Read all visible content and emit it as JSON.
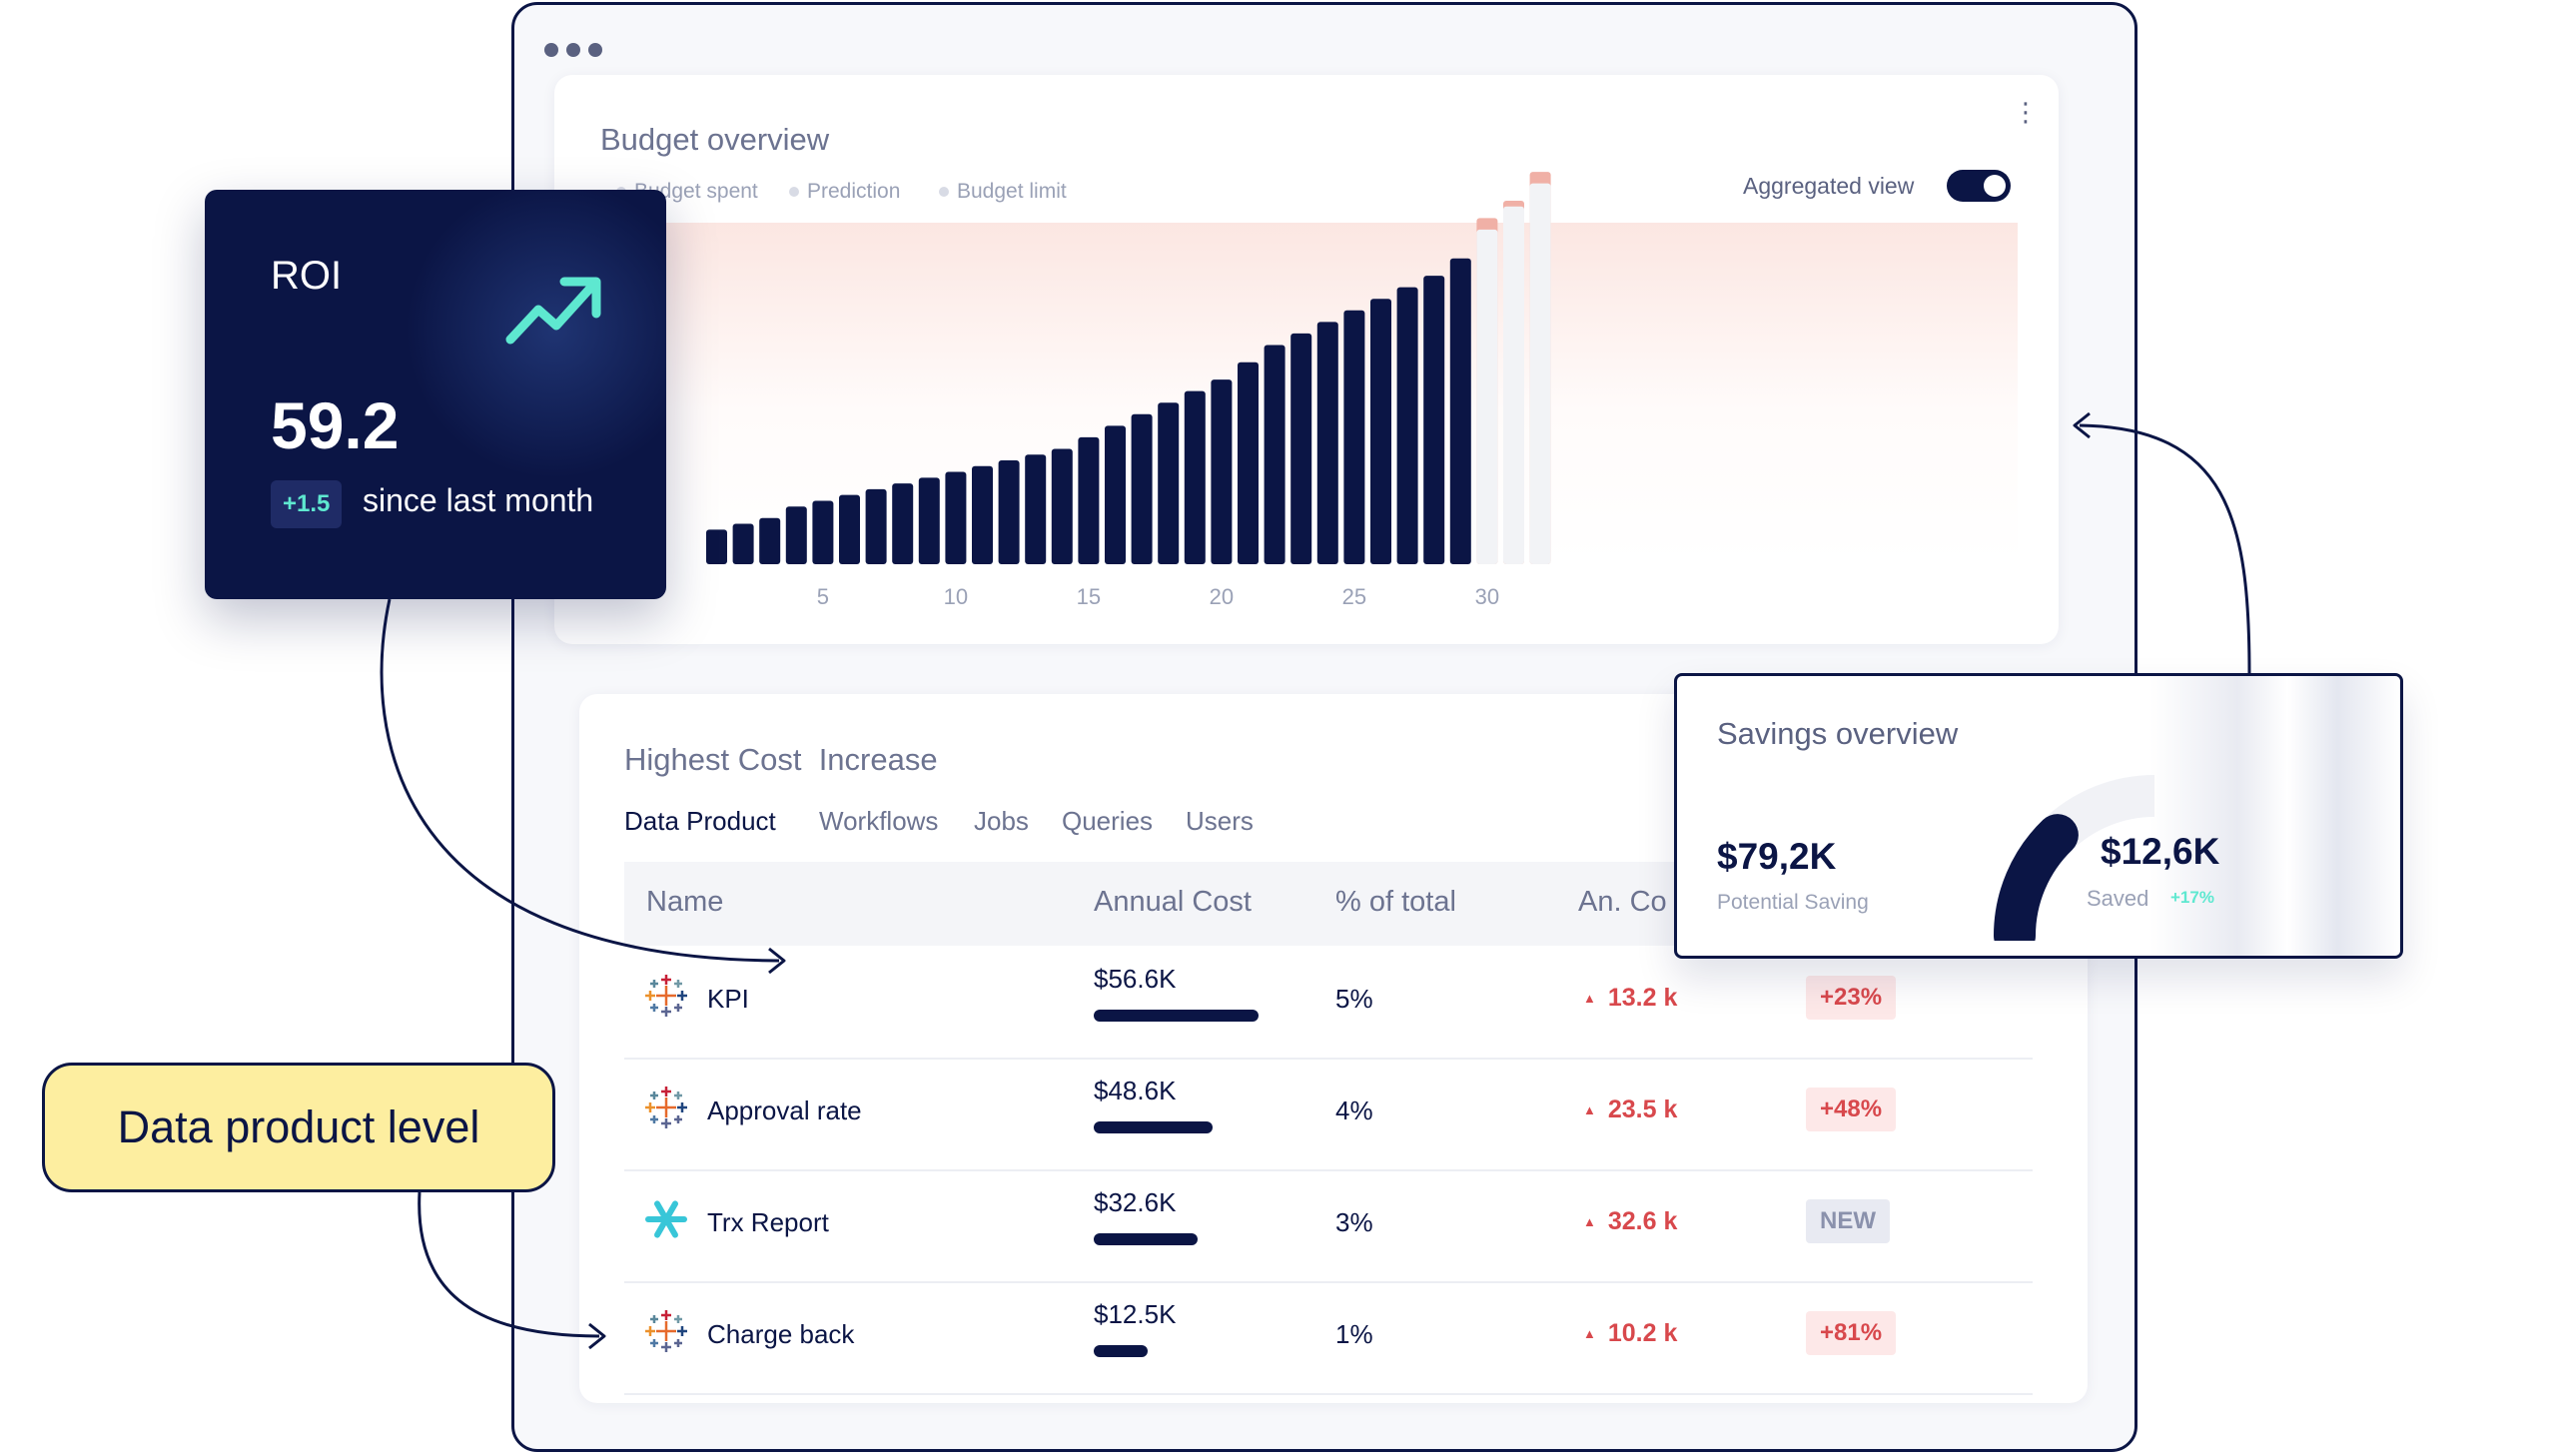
{
  "budget": {
    "title": "Budget overview",
    "legend": [
      "Budget spent",
      "Prediction",
      "Budget limit"
    ],
    "aggregated_label": "Aggregated view",
    "aggregated_on": true,
    "more_icon": "kebab-icon"
  },
  "chart_data": {
    "type": "bar",
    "title": "Budget overview",
    "x": [
      1,
      2,
      3,
      4,
      5,
      6,
      7,
      8,
      9,
      10,
      11,
      12,
      13,
      14,
      15,
      16,
      17,
      18,
      19,
      20,
      21,
      22,
      23,
      24,
      25,
      26,
      27,
      28,
      29,
      30,
      31,
      32
    ],
    "x_ticks": [
      "5",
      "10",
      "15",
      "20",
      "25",
      "30"
    ],
    "series": [
      {
        "name": "Budget spent",
        "values": [
          3,
          3.5,
          4,
          5,
          5.5,
          6,
          6.5,
          7,
          7.5,
          8,
          8.5,
          9,
          9.5,
          10,
          11,
          12,
          13,
          14,
          15,
          16,
          17.5,
          19,
          20,
          21,
          22,
          23,
          24,
          25,
          26.5,
          null,
          null,
          null
        ]
      },
      {
        "name": "Prediction",
        "values": [
          null,
          null,
          null,
          null,
          null,
          null,
          null,
          null,
          null,
          null,
          null,
          null,
          null,
          null,
          null,
          null,
          null,
          null,
          null,
          null,
          null,
          null,
          null,
          null,
          null,
          null,
          null,
          null,
          null,
          29,
          31,
          33
        ]
      },
      {
        "name": "Budget limit",
        "values": [
          null,
          null,
          null,
          null,
          null,
          null,
          null,
          null,
          null,
          null,
          null,
          null,
          null,
          null,
          null,
          null,
          null,
          null,
          null,
          null,
          null,
          null,
          null,
          null,
          null,
          null,
          null,
          null,
          null,
          30,
          31.5,
          34
        ]
      }
    ],
    "ylim": [
      0,
      36
    ],
    "grid": false,
    "legend_position": "top-left"
  },
  "table": {
    "title": "Highest Cost  Increase",
    "tabs": [
      "Data Product",
      "Workflows",
      "Jobs",
      "Queries",
      "Users"
    ],
    "active_tab": 0,
    "columns": [
      "Name",
      "Annual Cost",
      "% of total",
      "An. Co"
    ],
    "rows": [
      {
        "name": "KPI",
        "cost": "$56.6K",
        "cost_fraction": 1.0,
        "pct": "5%",
        "increase": "13.2 k",
        "badge": "+23%",
        "icon": "tableau-icon"
      },
      {
        "name": "Approval rate",
        "cost": "$48.6K",
        "cost_fraction": 0.72,
        "pct": "4%",
        "increase": "23.5 k",
        "badge": "+48%",
        "icon": "tableau-icon"
      },
      {
        "name": "Trx Report",
        "cost": "$32.6K",
        "cost_fraction": 0.63,
        "pct": "3%",
        "increase": "32.6 k",
        "badge": "NEW",
        "icon": "snowflake-icon"
      },
      {
        "name": "Charge back",
        "cost": "$12.5K",
        "cost_fraction": 0.33,
        "pct": "1%",
        "increase": "10.2 k",
        "badge": "+81%",
        "icon": "tableau-icon"
      }
    ]
  },
  "roi": {
    "label": "ROI",
    "value": "59.2",
    "delta": "+1.5",
    "since": "since last month",
    "icon": "trend-up-icon"
  },
  "savings": {
    "title": "Savings overview",
    "potential_value": "$79,2K",
    "potential_label": "Potential Saving",
    "saved_value": "$12,6K",
    "saved_label": "Saved",
    "saved_delta": "+17%",
    "saved_fraction": 0.16
  },
  "callout": {
    "text": "Data product level"
  },
  "colors": {
    "navy": "#0b1545",
    "teal": "#5ee8d0",
    "red": "#d8484c",
    "callout_yellow": "#fdeea0",
    "prediction": "#f2f3f6",
    "limit": "#f0b0a6"
  }
}
